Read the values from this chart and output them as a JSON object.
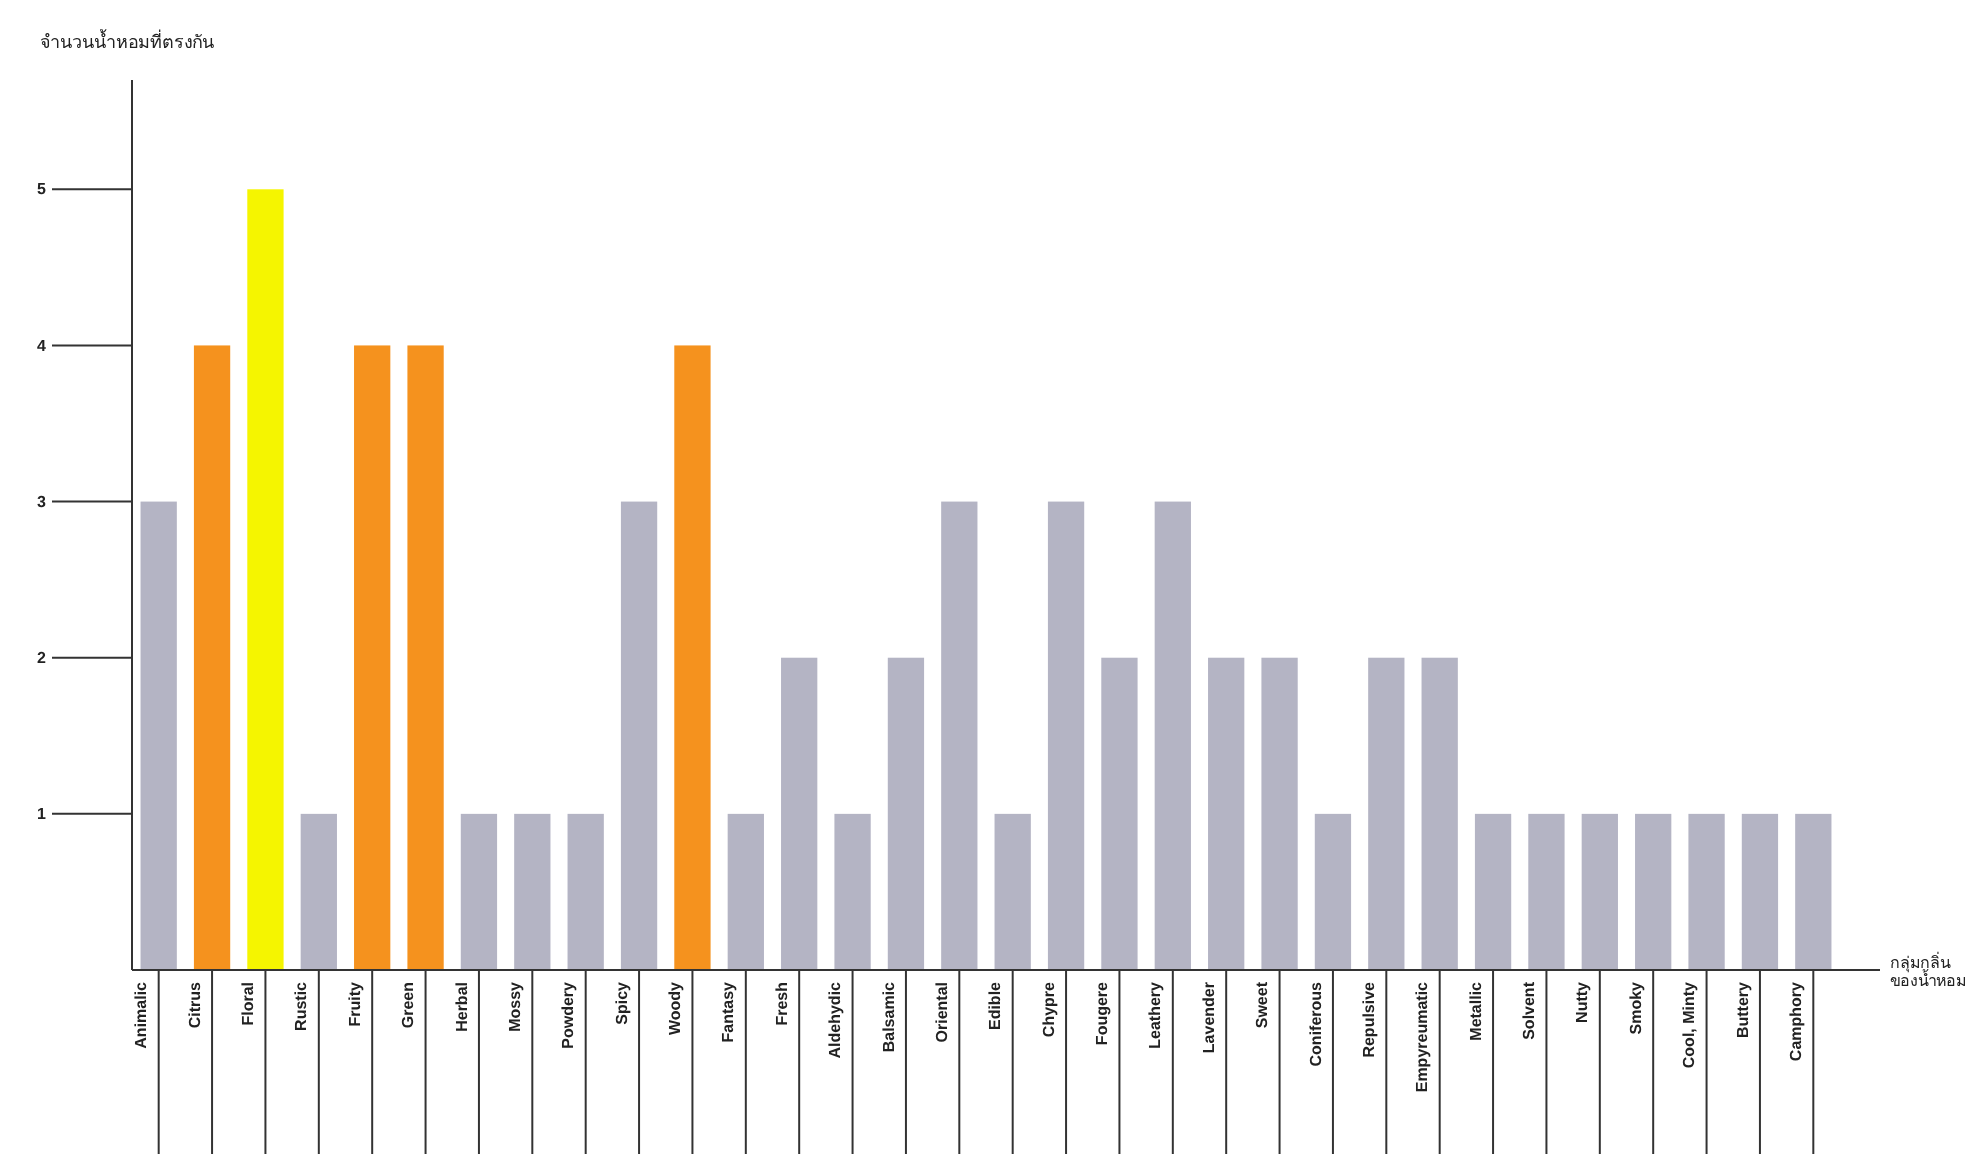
{
  "chart_data": {
    "type": "bar",
    "ylabel": "จำนวนน้ำหอมที่ตรงกัน",
    "xlabel": "กลุ่มกลิ่นของน้ำหอม",
    "categories": [
      "Animalic",
      "Citrus",
      "Floral",
      "Rustic",
      "Fruity",
      "Green",
      "Herbal",
      "Mossy",
      "Powdery",
      "Spicy",
      "Woody",
      "Fantasy",
      "Fresh",
      "Aldehydic",
      "Balsamic",
      "Oriental",
      "Edible",
      "Chypre",
      "Fougere",
      "Leathery",
      "Lavender",
      "Sweet",
      "Coniferous",
      "Repulsive",
      "Empyreumatic",
      "Metallic",
      "Solvent",
      "Nutty",
      "Smoky",
      "Cool, Minty",
      "Buttery",
      "Camphory"
    ],
    "values": [
      3,
      4,
      5,
      1,
      4,
      4,
      1,
      1,
      1,
      3,
      4,
      1,
      2,
      1,
      2,
      3,
      1,
      3,
      2,
      3,
      2,
      2,
      1,
      2,
      2,
      1,
      1,
      1,
      1,
      1,
      1,
      1
    ],
    "colors": [
      "#b4b4c4",
      "#f5921e",
      "#f5f500",
      "#b4b4c4",
      "#f5921e",
      "#f5921e",
      "#b4b4c4",
      "#b4b4c4",
      "#b4b4c4",
      "#b4b4c4",
      "#f5921e",
      "#b4b4c4",
      "#b4b4c4",
      "#b4b4c4",
      "#b4b4c4",
      "#b4b4c4",
      "#b4b4c4",
      "#b4b4c4",
      "#b4b4c4",
      "#b4b4c4",
      "#b4b4c4",
      "#b4b4c4",
      "#b4b4c4",
      "#b4b4c4",
      "#b4b4c4",
      "#b4b4c4",
      "#b4b4c4",
      "#b4b4c4",
      "#b4b4c4",
      "#b4b4c4",
      "#b4b4c4",
      "#b4b4c4"
    ],
    "ylim": [
      0,
      5.7
    ],
    "yticks": [
      1,
      2,
      3,
      4,
      5
    ],
    "grid": false
  }
}
